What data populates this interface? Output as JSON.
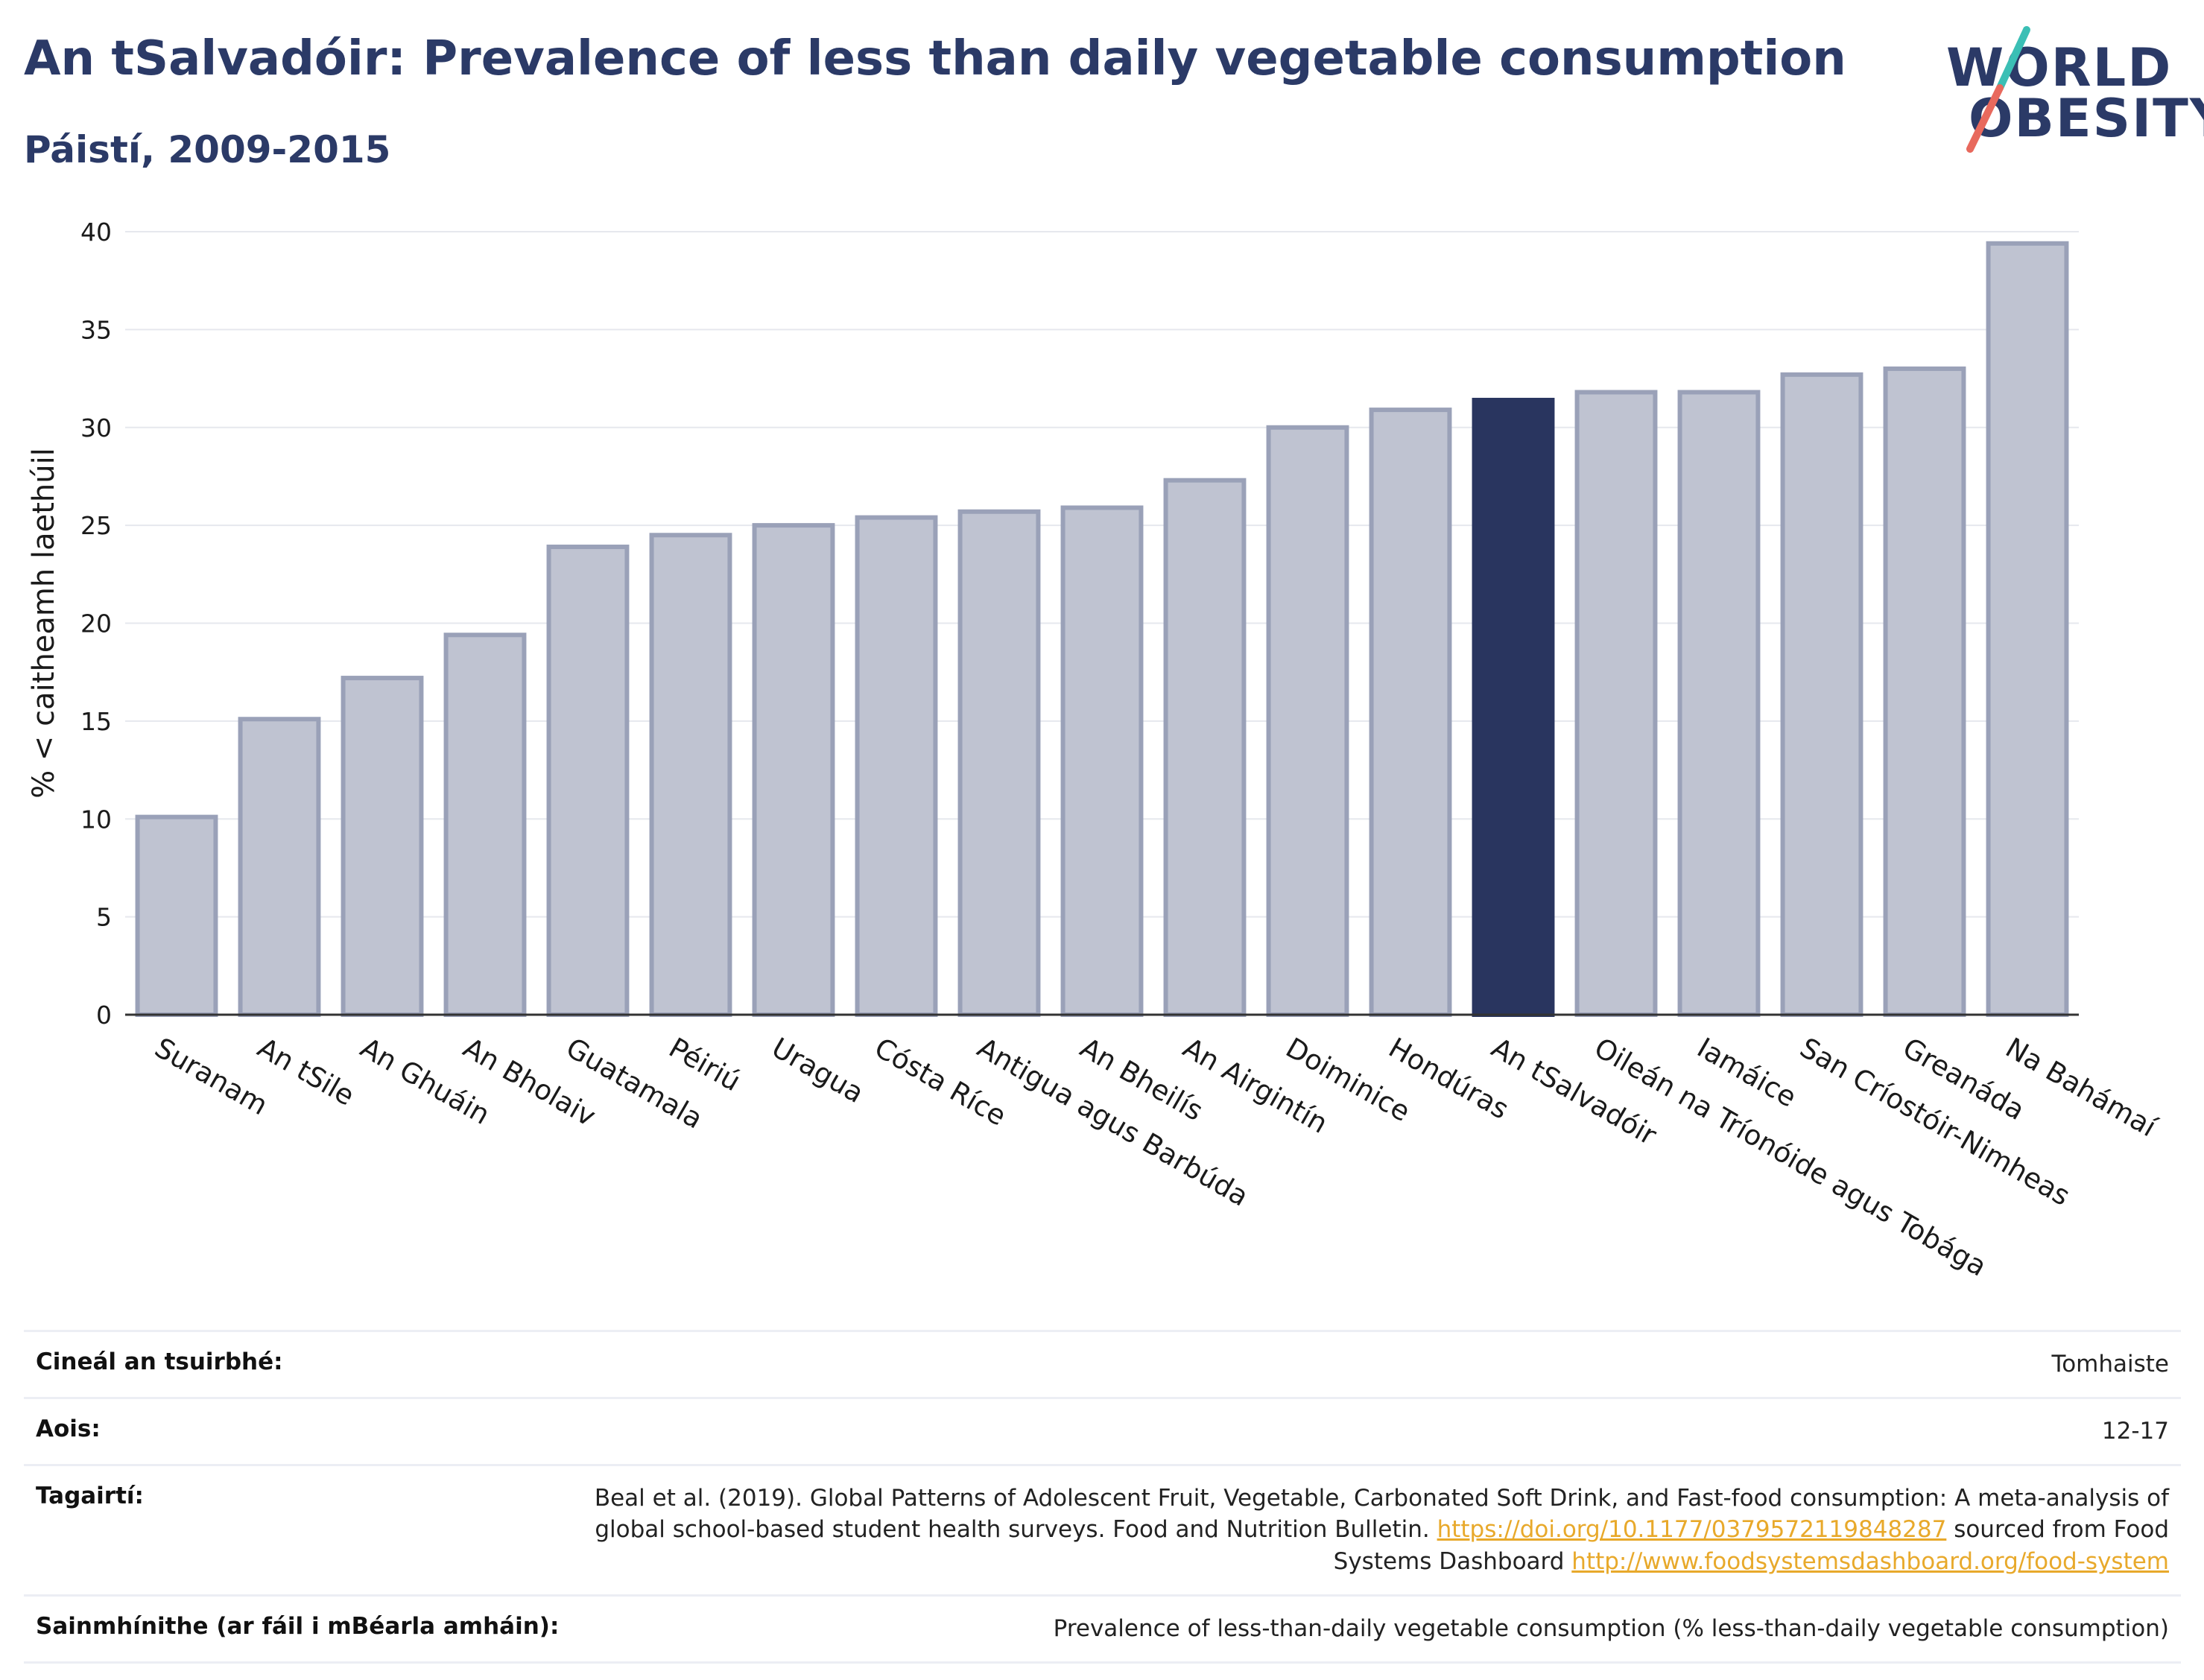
{
  "header": {
    "title": "An tSalvadóir: Prevalence of less than daily vegetable consumption",
    "subtitle": "Páistí, 2009-2015"
  },
  "logo": {
    "line1": "WORLD",
    "line2": "OBESITY"
  },
  "colors": {
    "highlight_bar": "#29355f",
    "bar_fill": "#bfc3d1",
    "bar_stroke": "#9aa1b8",
    "text_dark": "#2b3a67",
    "link": "#e8a92b"
  },
  "chart_data": {
    "type": "bar",
    "title": "An tSalvadóir: Prevalence of less than daily vegetable consumption",
    "subtitle": "Páistí, 2009-2015",
    "ylabel": "% < caitheamh laethúil",
    "xlabel": "",
    "ylim": [
      0,
      40
    ],
    "yticks": [
      0,
      5,
      10,
      15,
      20,
      25,
      30,
      35,
      40
    ],
    "grid": true,
    "highlight": "An tSalvadóir",
    "categories": [
      "Suranam",
      "An tSile",
      "An Ghuáin",
      "An Bholaiv",
      "Guatamala",
      "Péiriú",
      "Uragua",
      "Cósta Ríce",
      "Antigua agus Barbúda",
      "An Bheilís",
      "An Airgintín",
      "Doiminice",
      "Hondúras",
      "An tSalvadóir",
      "Oileán na Tríonóide agus Tobága",
      "Iamáice",
      "San Críostóir-Nimheas",
      "Greanáda",
      "Na Bahámaí"
    ],
    "values": [
      10.1,
      15.1,
      17.2,
      19.4,
      23.9,
      24.5,
      25.0,
      25.4,
      25.7,
      25.9,
      27.3,
      30.0,
      30.9,
      31.4,
      31.8,
      31.8,
      32.7,
      33.0,
      39.4
    ]
  },
  "info": {
    "rows": [
      {
        "key": "Cineál an tsuirbhé:",
        "value": "Tomhaiste"
      },
      {
        "key": "Aois:",
        "value": "12-17"
      },
      {
        "key": "Tagairtí:",
        "ref_text1": "Beal et al. (2019). Global Patterns of Adolescent Fruit, Vegetable, Carbonated Soft Drink, and Fast-food consumption: A meta-analysis of global school-based student health surveys. Food and Nutrition Bulletin.",
        "ref_link1": "https://doi.org/10.1177/0379572119848287",
        "ref_text2": "sourced from Food Systems Dashboard",
        "ref_link2": "http://www.foodsystemsdashboard.org/food-system"
      },
      {
        "key": "Sainmhínithe (ar fáil i mBéarla amháin):",
        "value": "Prevalence of less-than-daily vegetable consumption (% less-than-daily vegetable consumption)"
      }
    ]
  }
}
